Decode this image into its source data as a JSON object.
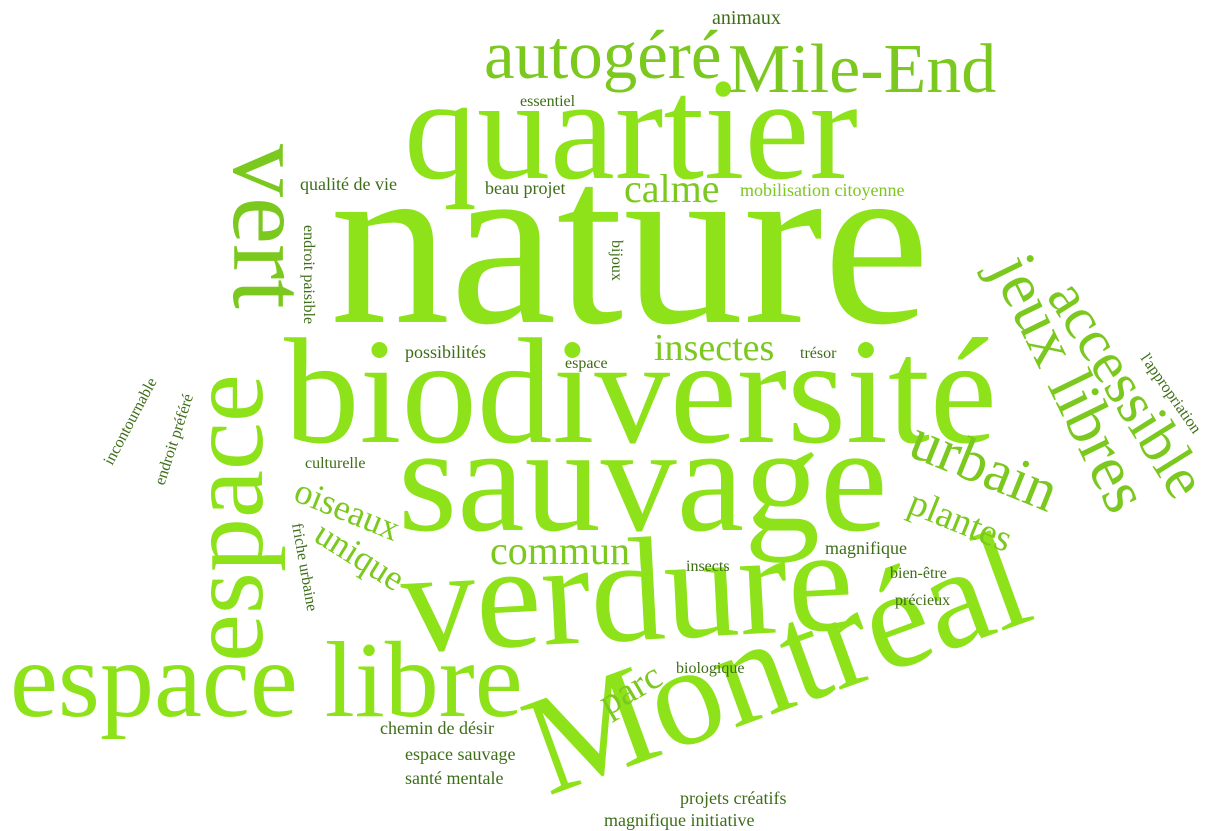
{
  "words": [
    "nature",
    "biodiversité",
    "quartier",
    "sauvage",
    "verdure",
    "Montréal",
    "espace libre",
    "espace",
    "vert",
    "autogéré",
    "Mile-End",
    "animaux",
    "essentiel",
    "qualité de vie",
    "beau projet",
    "calme",
    "mobilisation citoyenne",
    "endroit paisible",
    "bijoux",
    "accessible",
    "jeux libres",
    "l'appropriation",
    "possibilités",
    "espace",
    "insectes",
    "trésor",
    "incontournable",
    "endroit préféré",
    "culturelle",
    "urbain",
    "plantes",
    "oiseaux",
    "unique",
    "friche urbaine",
    "commun",
    "insects",
    "magnifique",
    "bien-être",
    "précieux",
    "parc",
    "biologique",
    "chemin de désir",
    "espace sauvage",
    "santé mentale",
    "projets créatifs",
    "magnifique initiative"
  ]
}
